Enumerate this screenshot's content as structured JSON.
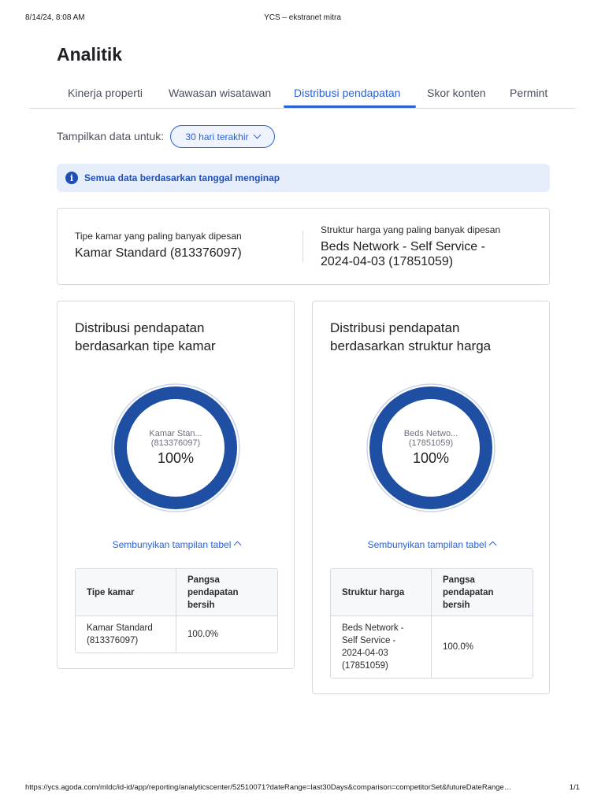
{
  "print_header": {
    "timestamp": "8/14/24, 8:08 AM",
    "title": "YCS – ekstranet mitra"
  },
  "page_title": "Analitik",
  "tabs": [
    {
      "label": "Kinerja properti"
    },
    {
      "label": "Wawasan wisatawan"
    },
    {
      "label": "Distribusi pendapatan",
      "active": true
    },
    {
      "label": "Skor konten"
    },
    {
      "label": "Permint"
    }
  ],
  "filter": {
    "label": "Tampilkan data untuk:",
    "selected": "30 hari terakhir"
  },
  "info_banner": {
    "text": "Semua data berdasarkan tanggal menginap",
    "icon": "info-icon"
  },
  "summary": {
    "left": {
      "label": "Tipe kamar yang paling banyak dipesan",
      "value": "Kamar Standard (813376097)"
    },
    "right": {
      "label": "Struktur harga yang paling banyak dipesan",
      "value_line1": "Beds Network - Self Service -",
      "value_line2": "2024-04-03 (17851059)"
    }
  },
  "cards": [
    {
      "title_line1": "Distribusi pendapatan",
      "title_line2": "berdasarkan tipe kamar",
      "donut": {
        "name_line1": "Kamar Stan...",
        "name_line2": "(813376097)",
        "percent": "100%",
        "share": 1.0,
        "color": "#1e4fa3"
      },
      "toggle_label": "Sembunyikan tampilan tabel",
      "table": {
        "col1": "Tipe kamar",
        "col2_lines": [
          "Pangsa",
          "pendapatan",
          "bersih"
        ],
        "rows": [
          {
            "name_lines": [
              "Kamar Standard",
              "(813376097)"
            ],
            "value": "100.0%"
          }
        ]
      }
    },
    {
      "title_line1": "Distribusi pendapatan",
      "title_line2": "berdasarkan struktur harga",
      "donut": {
        "name_line1": "Beds Netwo...",
        "name_line2": "(17851059)",
        "percent": "100%",
        "share": 1.0,
        "color": "#1e4fa3"
      },
      "toggle_label": "Sembunyikan tampilan tabel",
      "table": {
        "col1": "Struktur harga",
        "col2_lines": [
          "Pangsa",
          "pendapatan",
          "bersih"
        ],
        "rows": [
          {
            "name_lines": [
              "Beds Network -",
              "Self Service -",
              "2024-04-03",
              "(17851059)"
            ],
            "value": "100.0%"
          }
        ]
      }
    }
  ],
  "print_footer": {
    "url": "https://ycs.agoda.com/mldc/id-id/app/reporting/analyticscenter/52510071?dateRange=last30Days&comparison=competitorSet&futureDateRange…",
    "page": "1/1"
  }
}
